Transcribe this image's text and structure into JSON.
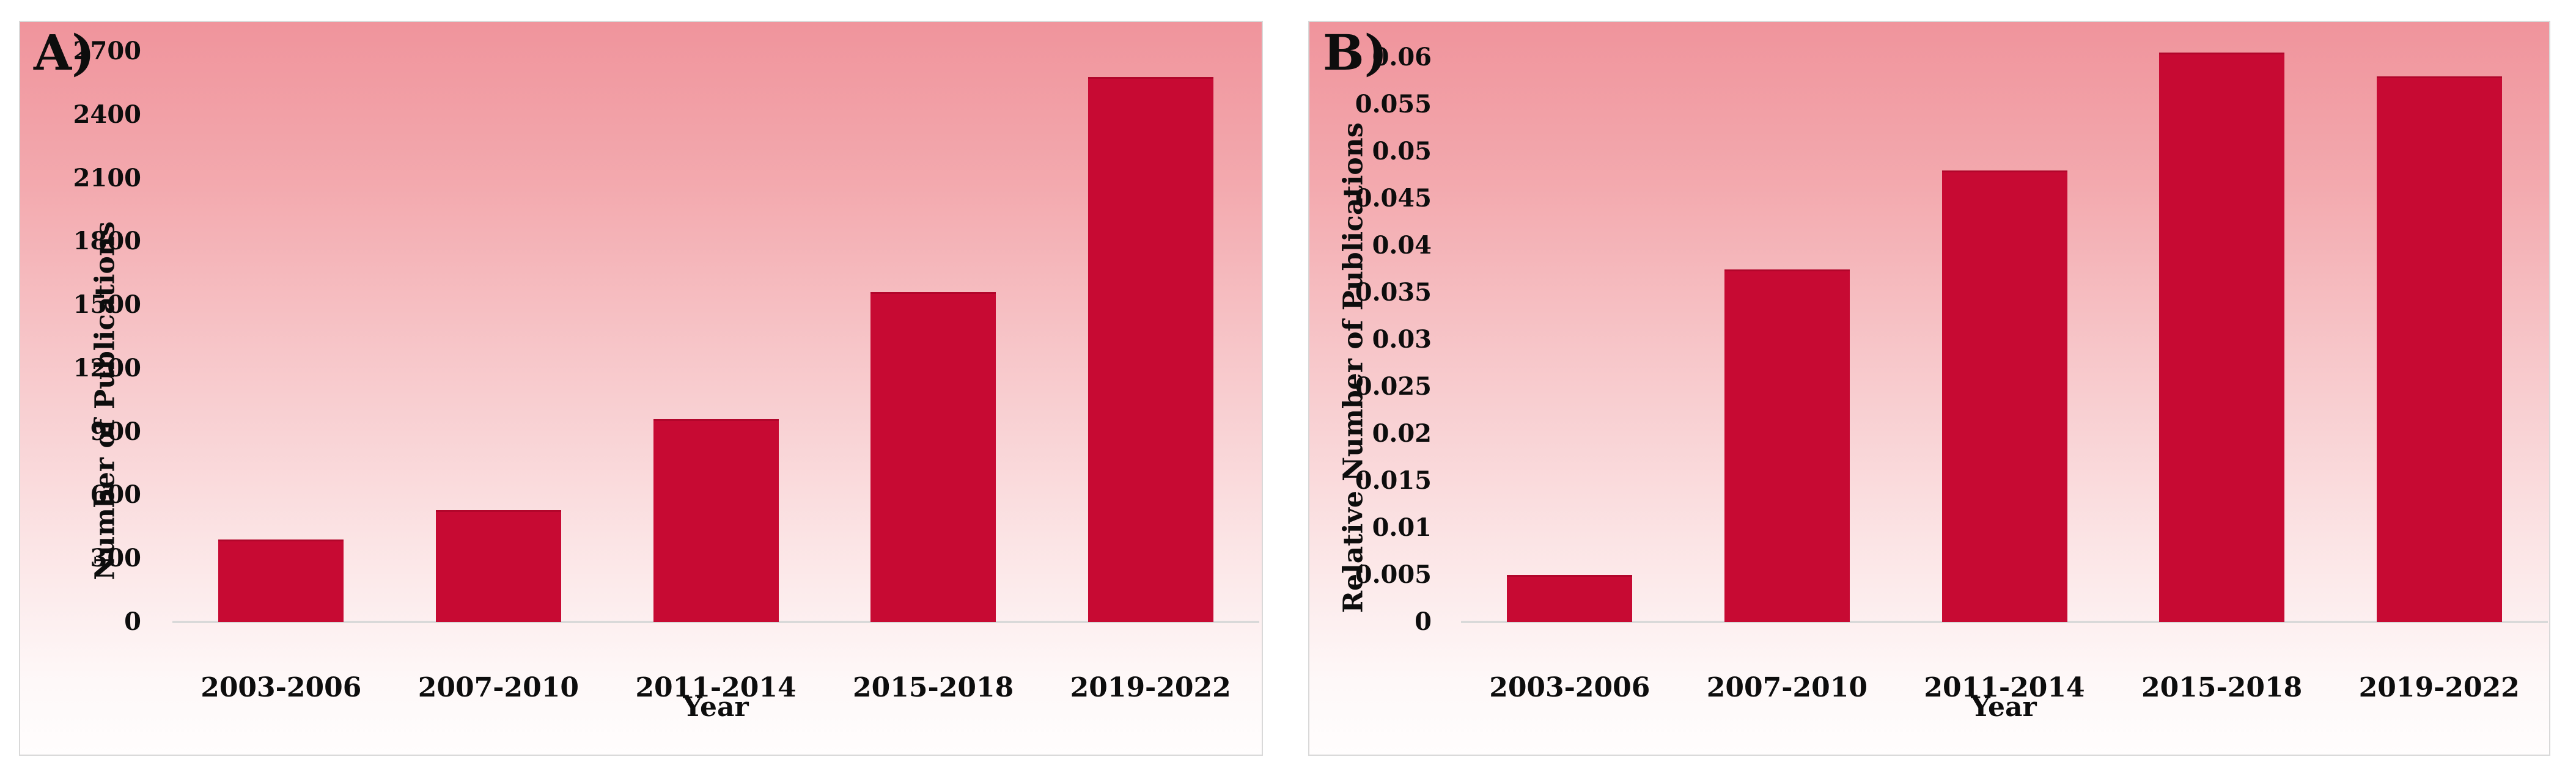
{
  "figure": {
    "background_color": "#FFFFFF",
    "panel_gradient_top": "#F0949C",
    "panel_gradient_bottom": "#FFFDFD",
    "panel_border_color": "#D9D9D9",
    "axis_line_color": "#D9D9D9",
    "text_color": "#0D0D0D"
  },
  "chart_data": [
    {
      "id": "A",
      "panel_label": "A)",
      "type": "bar",
      "title": "",
      "categories": [
        "2003-2006",
        "2007-2010",
        "2011-2014",
        "2015-2018",
        "2019-2022"
      ],
      "values": [
        390,
        530,
        960,
        1560,
        2580
      ],
      "xlabel": "Year",
      "ylabel": "Number of Publications",
      "ylim": [
        0,
        2700
      ],
      "ytick_values": [
        0,
        300,
        600,
        900,
        1200,
        1500,
        1800,
        2100,
        2400,
        2700
      ],
      "ytick_labels": [
        "0",
        "300",
        "600",
        "900",
        "1200",
        "1500",
        "1800",
        "2100",
        "2400",
        "2700"
      ],
      "grid": false,
      "legend": null,
      "bar_color": "#C70A33"
    },
    {
      "id": "B",
      "panel_label": "B)",
      "type": "bar",
      "title": "",
      "categories": [
        "2003-2006",
        "2007-2010",
        "2011-2014",
        "2015-2018",
        "2019-2022"
      ],
      "values": [
        0.005,
        0.0375,
        0.048,
        0.0605,
        0.058
      ],
      "xlabel": "Year",
      "ylabel": "Relative Number of Publications",
      "ylim": [
        0,
        0.06
      ],
      "ytick_values": [
        0,
        0.005,
        0.01,
        0.015,
        0.02,
        0.025,
        0.03,
        0.035,
        0.04,
        0.045,
        0.05,
        0.055,
        0.06
      ],
      "ytick_labels": [
        "0",
        "0.005",
        "0.01",
        "0.015",
        "0.02",
        "0.025",
        "0.03",
        "0.035",
        "0.04",
        "0.045",
        "0.05",
        "0.055",
        "0.06"
      ],
      "grid": false,
      "legend": null,
      "bar_color": "#C70A33"
    }
  ]
}
